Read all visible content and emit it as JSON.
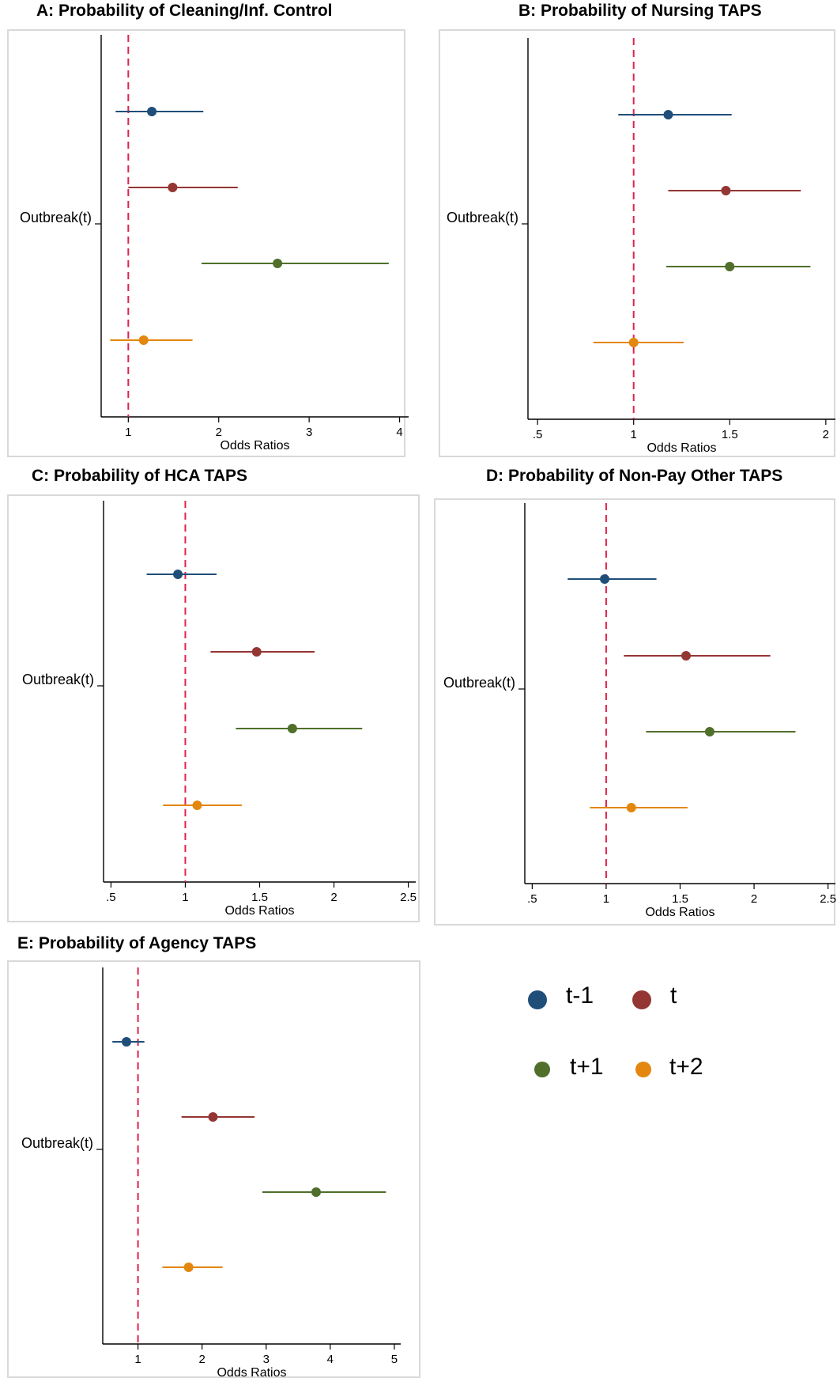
{
  "colors": {
    "t-1": "#1f4e79",
    "t": "#943634",
    "t+1": "#4f6f2b",
    "t+2": "#e3870e",
    "ref_line": "#e0224a"
  },
  "legend": [
    {
      "key": "t-1",
      "label": "t-1"
    },
    {
      "key": "t",
      "label": "t"
    },
    {
      "key": "t+1",
      "label": "t+1"
    },
    {
      "key": "t+2",
      "label": "t+2"
    }
  ],
  "chart_data": [
    {
      "type": "scatter",
      "title": "A: Probability of Cleaning/Inf. Control",
      "xlabel": "Odds Ratios",
      "ylabel": "Outbreak(t)",
      "xlim": [
        0.7,
        4.1
      ],
      "xticks": [
        1,
        2,
        3,
        4
      ],
      "xtick_labels": [
        "1",
        "2",
        "3",
        "4"
      ],
      "reference_line_x": 1,
      "series": [
        {
          "name": "t-1",
          "estimate": 1.26,
          "ci_low": 0.86,
          "ci_high": 1.83
        },
        {
          "name": "t",
          "estimate": 1.49,
          "ci_low": 1.0,
          "ci_high": 2.21
        },
        {
          "name": "t+1",
          "estimate": 2.65,
          "ci_low": 1.81,
          "ci_high": 3.88
        },
        {
          "name": "t+2",
          "estimate": 1.17,
          "ci_low": 0.8,
          "ci_high": 1.71
        }
      ]
    },
    {
      "type": "scatter",
      "title": "B: Probability of Nursing TAPS",
      "xlabel": "Odds Ratios",
      "ylabel": "Outbreak(t)",
      "xlim": [
        0.45,
        2.05
      ],
      "xticks": [
        0.5,
        1,
        1.5,
        2
      ],
      "xtick_labels": [
        ".5",
        "1",
        "1.5",
        "2"
      ],
      "reference_line_x": 1,
      "series": [
        {
          "name": "t-1",
          "estimate": 1.18,
          "ci_low": 0.92,
          "ci_high": 1.51
        },
        {
          "name": "t",
          "estimate": 1.48,
          "ci_low": 1.18,
          "ci_high": 1.87
        },
        {
          "name": "t+1",
          "estimate": 1.5,
          "ci_low": 1.17,
          "ci_high": 1.92
        },
        {
          "name": "t+2",
          "estimate": 1.0,
          "ci_low": 0.79,
          "ci_high": 1.26
        }
      ]
    },
    {
      "type": "scatter",
      "title": "C: Probability of HCA TAPS",
      "xlabel": "Odds Ratios",
      "ylabel": "Outbreak(t)",
      "xlim": [
        0.45,
        2.55
      ],
      "xticks": [
        0.5,
        1,
        1.5,
        2,
        2.5
      ],
      "xtick_labels": [
        ".5",
        "1",
        "1.5",
        "2",
        "2.5"
      ],
      "reference_line_x": 1,
      "series": [
        {
          "name": "t-1",
          "estimate": 0.95,
          "ci_low": 0.74,
          "ci_high": 1.21
        },
        {
          "name": "t",
          "estimate": 1.48,
          "ci_low": 1.17,
          "ci_high": 1.87
        },
        {
          "name": "t+1",
          "estimate": 1.72,
          "ci_low": 1.34,
          "ci_high": 2.19
        },
        {
          "name": "t+2",
          "estimate": 1.08,
          "ci_low": 0.85,
          "ci_high": 1.38
        }
      ]
    },
    {
      "type": "scatter",
      "title": "D: Probability of Non-Pay Other TAPS",
      "xlabel": "Odds Ratios",
      "ylabel": "Outbreak(t)",
      "xlim": [
        0.45,
        2.55
      ],
      "xticks": [
        0.5,
        1,
        1.5,
        2,
        2.5
      ],
      "xtick_labels": [
        ".5",
        "1",
        "1.5",
        "2",
        "2.5"
      ],
      "reference_line_x": 1,
      "series": [
        {
          "name": "t-1",
          "estimate": 0.99,
          "ci_low": 0.74,
          "ci_high": 1.34
        },
        {
          "name": "t",
          "estimate": 1.54,
          "ci_low": 1.12,
          "ci_high": 2.11
        },
        {
          "name": "t+1",
          "estimate": 1.7,
          "ci_low": 1.27,
          "ci_high": 2.28
        },
        {
          "name": "t+2",
          "estimate": 1.17,
          "ci_low": 0.89,
          "ci_high": 1.55
        }
      ]
    },
    {
      "type": "scatter",
      "title": "E: Probability of Agency TAPS",
      "xlabel": "Odds Ratios",
      "ylabel": "Outbreak(t)",
      "xlim": [
        0.45,
        5.1
      ],
      "xticks": [
        1,
        2,
        3,
        4,
        5
      ],
      "xtick_labels": [
        "1",
        "2",
        "3",
        "4",
        "5"
      ],
      "reference_line_x": 1,
      "series": [
        {
          "name": "t-1",
          "estimate": 0.82,
          "ci_low": 0.6,
          "ci_high": 1.1
        },
        {
          "name": "t",
          "estimate": 2.17,
          "ci_low": 1.68,
          "ci_high": 2.82
        },
        {
          "name": "t+1",
          "estimate": 3.78,
          "ci_low": 2.94,
          "ci_high": 4.87
        },
        {
          "name": "t+2",
          "estimate": 1.79,
          "ci_low": 1.38,
          "ci_high": 2.32
        }
      ]
    }
  ]
}
